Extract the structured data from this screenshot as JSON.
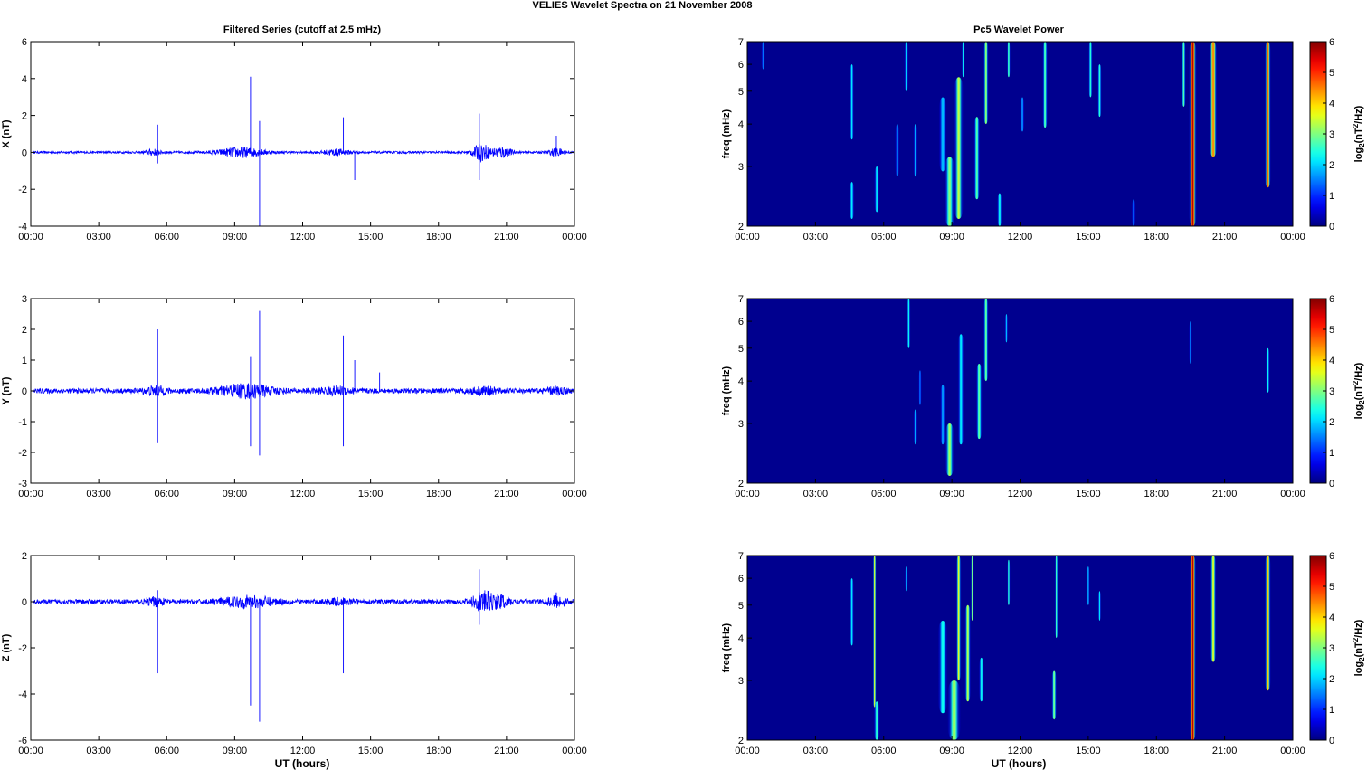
{
  "figure": {
    "title": "VELIES Wavelet Spectra on 21 November  2008",
    "left_title": "Filtered Series (cutoff at 2.5 mHz)",
    "right_title": "Pc5 Wavelet Power",
    "xlabel": "UT (hours)"
  },
  "colors": {
    "trace": "#0000ff",
    "background": "#00008f",
    "axis": "#000000"
  },
  "chart_data": [
    {
      "type": "line",
      "component": "X",
      "ylabel": "X (nT)",
      "xticks": [
        "00:00",
        "03:00",
        "06:00",
        "09:00",
        "12:00",
        "15:00",
        "18:00",
        "21:00",
        "00:00"
      ],
      "xlim_hours": [
        0,
        24
      ],
      "ylim": [
        -4,
        6
      ],
      "yticks": [
        "-4",
        "-2",
        "0",
        "2",
        "4",
        "6"
      ],
      "baseline_amplitude": 0.06,
      "bursts": [
        {
          "t": 5.4,
          "amp": 0.15,
          "w": 0.3
        },
        {
          "t": 9.3,
          "amp": 0.25,
          "w": 1.0
        },
        {
          "t": 13.5,
          "amp": 0.15,
          "w": 0.6
        },
        {
          "t": 19.9,
          "amp": 0.45,
          "w": 0.4
        },
        {
          "t": 20.8,
          "amp": 0.3,
          "w": 0.4
        },
        {
          "t": 23.2,
          "amp": 0.2,
          "w": 0.3
        }
      ],
      "spikes": [
        {
          "t": 5.6,
          "y": 1.5
        },
        {
          "t": 5.6,
          "y": -0.6
        },
        {
          "t": 9.7,
          "y": 4.1
        },
        {
          "t": 10.1,
          "y": -4.0
        },
        {
          "t": 10.1,
          "y": 1.7
        },
        {
          "t": 13.8,
          "y": 1.9
        },
        {
          "t": 14.3,
          "y": -1.5
        },
        {
          "t": 19.8,
          "y": 2.1
        },
        {
          "t": 19.8,
          "y": -1.5
        },
        {
          "t": 23.2,
          "y": 0.9
        }
      ]
    },
    {
      "type": "line",
      "component": "Y",
      "ylabel": "Y (nT)",
      "xticks": [
        "00:00",
        "03:00",
        "06:00",
        "09:00",
        "12:00",
        "15:00",
        "18:00",
        "21:00",
        "00:00"
      ],
      "xlim_hours": [
        0,
        24
      ],
      "ylim": [
        -3,
        3
      ],
      "yticks": [
        "-3",
        "-2",
        "-1",
        "0",
        "1",
        "2",
        "3"
      ],
      "baseline_amplitude": 0.08,
      "bursts": [
        {
          "t": 5.5,
          "amp": 0.12,
          "w": 0.5
        },
        {
          "t": 9.5,
          "amp": 0.2,
          "w": 1.2
        },
        {
          "t": 13.5,
          "amp": 0.1,
          "w": 0.8
        },
        {
          "t": 20.0,
          "amp": 0.1,
          "w": 0.6
        },
        {
          "t": 23.2,
          "amp": 0.1,
          "w": 0.4
        }
      ],
      "spikes": [
        {
          "t": 5.6,
          "y": 2.0
        },
        {
          "t": 5.6,
          "y": -1.7
        },
        {
          "t": 9.7,
          "y": 1.1
        },
        {
          "t": 9.7,
          "y": -1.8
        },
        {
          "t": 10.1,
          "y": 2.6
        },
        {
          "t": 10.1,
          "y": -2.1
        },
        {
          "t": 13.8,
          "y": 1.8
        },
        {
          "t": 13.8,
          "y": -1.8
        },
        {
          "t": 14.3,
          "y": 1.0
        },
        {
          "t": 15.4,
          "y": 0.6
        }
      ]
    },
    {
      "type": "line",
      "component": "Z",
      "ylabel": "Z (nT)",
      "xticks": [
        "00:00",
        "03:00",
        "06:00",
        "09:00",
        "12:00",
        "15:00",
        "18:00",
        "21:00",
        "00:00"
      ],
      "xlim_hours": [
        0,
        24
      ],
      "ylim": [
        -6,
        2
      ],
      "yticks": [
        "-6",
        "-4",
        "-2",
        "0",
        "2"
      ],
      "baseline_amplitude": 0.1,
      "bursts": [
        {
          "t": 5.5,
          "amp": 0.15,
          "w": 0.4
        },
        {
          "t": 9.6,
          "amp": 0.2,
          "w": 1.2
        },
        {
          "t": 13.6,
          "amp": 0.1,
          "w": 0.6
        },
        {
          "t": 20.0,
          "amp": 0.4,
          "w": 0.5
        },
        {
          "t": 20.8,
          "amp": 0.2,
          "w": 0.4
        },
        {
          "t": 23.2,
          "amp": 0.2,
          "w": 0.4
        }
      ],
      "spikes": [
        {
          "t": 5.6,
          "y": -3.1
        },
        {
          "t": 5.6,
          "y": 0.5
        },
        {
          "t": 9.7,
          "y": -4.5
        },
        {
          "t": 10.1,
          "y": -5.2
        },
        {
          "t": 13.8,
          "y": -3.1
        },
        {
          "t": 19.8,
          "y": 1.4
        },
        {
          "t": 19.8,
          "y": -1.0
        },
        {
          "t": 23.2,
          "y": 0.4
        }
      ]
    },
    {
      "type": "heatmap",
      "component": "X",
      "ylabel": "freq (mHz)",
      "colorbar_label": "log2(nT2/Hz)",
      "xticks": [
        "00:00",
        "03:00",
        "06:00",
        "09:00",
        "12:00",
        "15:00",
        "18:00",
        "21:00",
        "00:00"
      ],
      "xlim_hours": [
        0,
        24
      ],
      "ylim_mHz": [
        2,
        7
      ],
      "yscale": "log",
      "yticks": [
        "2",
        "3",
        "4",
        "5",
        "6",
        "7"
      ],
      "clim": [
        0,
        6
      ],
      "colorbar_ticks": [
        "0",
        "1",
        "2",
        "3",
        "4",
        "5",
        "6"
      ],
      "blobs": [
        {
          "t": 0.7,
          "f_lo": 5.8,
          "f_hi": 7.0,
          "peak": 1.0,
          "w": 0.07
        },
        {
          "t": 4.6,
          "f_lo": 3.6,
          "f_hi": 6.0,
          "peak": 1.8,
          "w": 0.08
        },
        {
          "t": 4.6,
          "f_lo": 2.1,
          "f_hi": 2.7,
          "peak": 1.8,
          "w": 0.1
        },
        {
          "t": 5.7,
          "f_lo": 2.2,
          "f_hi": 3.0,
          "peak": 1.8,
          "w": 0.1
        },
        {
          "t": 6.6,
          "f_lo": 2.8,
          "f_hi": 4.0,
          "peak": 1.3,
          "w": 0.08
        },
        {
          "t": 7.0,
          "f_lo": 5.0,
          "f_hi": 7.0,
          "peak": 1.8,
          "w": 0.08
        },
        {
          "t": 7.4,
          "f_lo": 2.8,
          "f_hi": 4.0,
          "peak": 1.5,
          "w": 0.08
        },
        {
          "t": 8.6,
          "f_lo": 2.9,
          "f_hi": 4.8,
          "peak": 1.5,
          "w": 0.15
        },
        {
          "t": 8.9,
          "f_lo": 2.0,
          "f_hi": 3.2,
          "peak": 2.8,
          "w": 0.2
        },
        {
          "t": 9.3,
          "f_lo": 2.1,
          "f_hi": 5.5,
          "peak": 3.2,
          "w": 0.18
        },
        {
          "t": 9.5,
          "f_lo": 5.5,
          "f_hi": 7.0,
          "peak": 2.0,
          "w": 0.06
        },
        {
          "t": 10.1,
          "f_lo": 2.4,
          "f_hi": 4.2,
          "peak": 2.5,
          "w": 0.12
        },
        {
          "t": 10.5,
          "f_lo": 4.0,
          "f_hi": 7.0,
          "peak": 3.0,
          "w": 0.1
        },
        {
          "t": 11.1,
          "f_lo": 2.0,
          "f_hi": 2.5,
          "peak": 2.0,
          "w": 0.1
        },
        {
          "t": 11.5,
          "f_lo": 5.5,
          "f_hi": 7.0,
          "peak": 2.5,
          "w": 0.07
        },
        {
          "t": 12.1,
          "f_lo": 3.8,
          "f_hi": 4.8,
          "peak": 1.2,
          "w": 0.08
        },
        {
          "t": 13.1,
          "f_lo": 3.9,
          "f_hi": 7.0,
          "peak": 2.5,
          "w": 0.1
        },
        {
          "t": 15.1,
          "f_lo": 4.8,
          "f_hi": 7.0,
          "peak": 2.2,
          "w": 0.08
        },
        {
          "t": 15.5,
          "f_lo": 4.2,
          "f_hi": 6.0,
          "peak": 2.2,
          "w": 0.08
        },
        {
          "t": 17.0,
          "f_lo": 2.0,
          "f_hi": 2.4,
          "peak": 1.0,
          "w": 0.08
        },
        {
          "t": 19.2,
          "f_lo": 4.5,
          "f_hi": 7.0,
          "peak": 2.5,
          "w": 0.08
        },
        {
          "t": 19.6,
          "f_lo": 2.0,
          "f_hi": 7.0,
          "peak": 5.8,
          "w": 0.15
        },
        {
          "t": 20.5,
          "f_lo": 3.2,
          "f_hi": 7.0,
          "peak": 4.5,
          "w": 0.15
        },
        {
          "t": 22.9,
          "f_lo": 2.6,
          "f_hi": 7.0,
          "peak": 4.6,
          "w": 0.12
        }
      ]
    },
    {
      "type": "heatmap",
      "component": "Y",
      "ylabel": "freq (mHz)",
      "colorbar_label": "log2(nT2/Hz)",
      "xticks": [
        "00:00",
        "03:00",
        "06:00",
        "09:00",
        "12:00",
        "15:00",
        "18:00",
        "21:00",
        "00:00"
      ],
      "xlim_hours": [
        0,
        24
      ],
      "ylim_mHz": [
        2,
        7
      ],
      "yscale": "log",
      "yticks": [
        "2",
        "3",
        "4",
        "5",
        "6",
        "7"
      ],
      "clim": [
        0,
        6
      ],
      "colorbar_ticks": [
        "0",
        "1",
        "2",
        "3",
        "4",
        "5",
        "6"
      ],
      "blobs": [
        {
          "t": 7.1,
          "f_lo": 5.0,
          "f_hi": 7.0,
          "peak": 2.0,
          "w": 0.07
        },
        {
          "t": 7.4,
          "f_lo": 2.6,
          "f_hi": 3.3,
          "peak": 1.5,
          "w": 0.08
        },
        {
          "t": 7.6,
          "f_lo": 3.4,
          "f_hi": 4.3,
          "peak": 1.0,
          "w": 0.06
        },
        {
          "t": 8.6,
          "f_lo": 2.6,
          "f_hi": 3.9,
          "peak": 1.3,
          "w": 0.1
        },
        {
          "t": 8.9,
          "f_lo": 2.1,
          "f_hi": 3.0,
          "peak": 3.0,
          "w": 0.18
        },
        {
          "t": 9.4,
          "f_lo": 2.6,
          "f_hi": 5.5,
          "peak": 1.8,
          "w": 0.12
        },
        {
          "t": 10.2,
          "f_lo": 2.7,
          "f_hi": 4.5,
          "peak": 2.6,
          "w": 0.12
        },
        {
          "t": 10.5,
          "f_lo": 4.0,
          "f_hi": 7.0,
          "peak": 2.7,
          "w": 0.1
        },
        {
          "t": 11.4,
          "f_lo": 5.2,
          "f_hi": 6.3,
          "peak": 1.5,
          "w": 0.06
        },
        {
          "t": 19.5,
          "f_lo": 4.5,
          "f_hi": 6.0,
          "peak": 1.2,
          "w": 0.06
        },
        {
          "t": 22.9,
          "f_lo": 3.7,
          "f_hi": 5.0,
          "peak": 2.0,
          "w": 0.08
        }
      ]
    },
    {
      "type": "heatmap",
      "component": "Z",
      "ylabel": "freq (mHz)",
      "colorbar_label": "log2(nT2/Hz)",
      "xticks": [
        "00:00",
        "03:00",
        "06:00",
        "09:00",
        "12:00",
        "15:00",
        "18:00",
        "21:00",
        "00:00"
      ],
      "xlim_hours": [
        0,
        24
      ],
      "ylim_mHz": [
        2,
        7
      ],
      "yscale": "log",
      "yticks": [
        "2",
        "3",
        "4",
        "5",
        "6",
        "7"
      ],
      "clim": [
        0,
        6
      ],
      "colorbar_ticks": [
        "0",
        "1",
        "2",
        "3",
        "4",
        "5",
        "6"
      ],
      "blobs": [
        {
          "t": 4.6,
          "f_lo": 3.8,
          "f_hi": 6.0,
          "peak": 1.8,
          "w": 0.08
        },
        {
          "t": 5.6,
          "f_lo": 2.5,
          "f_hi": 7.0,
          "peak": 3.5,
          "w": 0.07
        },
        {
          "t": 5.7,
          "f_lo": 2.0,
          "f_hi": 2.6,
          "peak": 2.2,
          "w": 0.12
        },
        {
          "t": 7.0,
          "f_lo": 5.5,
          "f_hi": 6.5,
          "peak": 1.5,
          "w": 0.06
        },
        {
          "t": 8.6,
          "f_lo": 2.4,
          "f_hi": 4.5,
          "peak": 2.0,
          "w": 0.18
        },
        {
          "t": 9.1,
          "f_lo": 2.0,
          "f_hi": 3.0,
          "peak": 3.0,
          "w": 0.25
        },
        {
          "t": 9.3,
          "f_lo": 3.0,
          "f_hi": 7.0,
          "peak": 3.5,
          "w": 0.1
        },
        {
          "t": 9.7,
          "f_lo": 2.6,
          "f_hi": 5.0,
          "peak": 3.2,
          "w": 0.12
        },
        {
          "t": 9.9,
          "f_lo": 4.5,
          "f_hi": 7.0,
          "peak": 3.0,
          "w": 0.06
        },
        {
          "t": 10.3,
          "f_lo": 2.6,
          "f_hi": 3.5,
          "peak": 2.0,
          "w": 0.1
        },
        {
          "t": 11.5,
          "f_lo": 5.0,
          "f_hi": 6.8,
          "peak": 2.3,
          "w": 0.06
        },
        {
          "t": 13.5,
          "f_lo": 2.3,
          "f_hi": 3.2,
          "peak": 2.8,
          "w": 0.1
        },
        {
          "t": 13.6,
          "f_lo": 4.0,
          "f_hi": 7.0,
          "peak": 2.5,
          "w": 0.06
        },
        {
          "t": 15.0,
          "f_lo": 5.0,
          "f_hi": 6.5,
          "peak": 1.5,
          "w": 0.06
        },
        {
          "t": 15.5,
          "f_lo": 4.5,
          "f_hi": 5.5,
          "peak": 1.8,
          "w": 0.06
        },
        {
          "t": 19.6,
          "f_lo": 2.0,
          "f_hi": 7.0,
          "peak": 5.8,
          "w": 0.13
        },
        {
          "t": 20.5,
          "f_lo": 3.4,
          "f_hi": 7.0,
          "peak": 3.5,
          "w": 0.12
        },
        {
          "t": 22.9,
          "f_lo": 2.8,
          "f_hi": 7.0,
          "peak": 4.0,
          "w": 0.12
        }
      ]
    }
  ]
}
